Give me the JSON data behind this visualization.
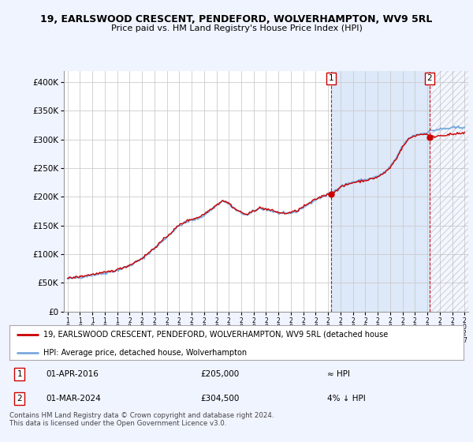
{
  "title1": "19, EARLSWOOD CRESCENT, PENDEFORD, WOLVERHAMPTON, WV9 5RL",
  "title2": "Price paid vs. HM Land Registry's House Price Index (HPI)",
  "legend_line1": "19, EARLSWOOD CRESCENT, PENDEFORD, WOLVERHAMPTON, WV9 5RL (detached house",
  "legend_line2": "HPI: Average price, detached house, Wolverhampton",
  "annotation1_date": "01-APR-2016",
  "annotation1_price": "£205,000",
  "annotation1_hpi": "≈ HPI",
  "annotation2_date": "01-MAR-2024",
  "annotation2_price": "£304,500",
  "annotation2_hpi": "4% ↓ HPI",
  "footer": "Contains HM Land Registry data © Crown copyright and database right 2024.\nThis data is licensed under the Open Government Licence v3.0.",
  "bg_color": "#f0f4ff",
  "plot_bg_color": "#ffffff",
  "hpi_color": "#7aaadd",
  "price_color": "#cc0000",
  "vline_color": "#cc0000",
  "shade_color": "#dde8f8",
  "ylim": [
    0,
    420000
  ],
  "yticks": [
    0,
    50000,
    100000,
    150000,
    200000,
    250000,
    300000,
    350000,
    400000
  ],
  "marker1_year": 2016.25,
  "marker1_value": 205000,
  "marker2_year": 2024.17,
  "marker2_value": 304500,
  "xlim_start": 1994.7,
  "xlim_end": 2027.3
}
